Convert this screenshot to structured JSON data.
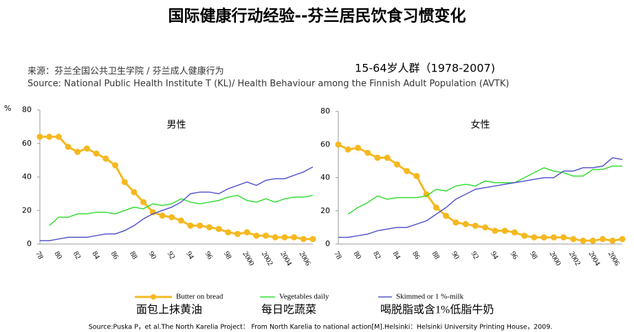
{
  "title": "国际健康行动经验--芬兰居民饮食习惯变化",
  "source_cn": "来源：芬兰全国公共卫生学院 / 芬兰成人健康行为",
  "source_en": "Source: National Public Health Institute T (KL)/ Health Behaviour among the Finnish Adult  Population (AVTK)",
  "group_label": "15-64岁人群（1978-2007)",
  "legend_cn": [
    "面包上抹黄油",
    "每日吃蔬菜",
    "喝脱脂或含1%低脂牛奶"
  ],
  "footnote": "Source:Puska P，et al.The North Karelia Project： From North Karelia to national action[M].Helsinki：Helsinki University Printing House，2009.",
  "chart_data": [
    {
      "type": "line",
      "title": "男性",
      "y_label": "%",
      "categories": [
        "78",
        null,
        "80",
        null,
        "82",
        null,
        "84",
        null,
        "86",
        null,
        "88",
        null,
        "90",
        null,
        "92",
        null,
        "94",
        null,
        "96",
        null,
        "98",
        null,
        "2000",
        null,
        "2002",
        null,
        "2004",
        null,
        "2006",
        null
      ],
      "ylim": [
        0,
        80
      ],
      "yticks": [
        0,
        20,
        40,
        60,
        80
      ],
      "series": [
        {
          "name": "Butter on bread",
          "color": "#f5b820",
          "values": [
            64,
            64,
            64,
            58,
            55,
            57,
            54,
            51,
            47,
            37,
            31,
            25,
            19,
            17,
            16,
            14,
            11,
            11,
            10,
            9,
            7,
            6,
            7,
            5,
            5,
            4,
            4,
            4,
            3,
            3
          ]
        },
        {
          "name": "Vegetables daily",
          "color": "#33dd33",
          "values": [
            null,
            11,
            16,
            16,
            18,
            18,
            19,
            19,
            18,
            20,
            22,
            21,
            24,
            23,
            24,
            27,
            25,
            24,
            25,
            26,
            28,
            29,
            26,
            25,
            27,
            25,
            27,
            28,
            28,
            29
          ]
        },
        {
          "name": "Skimmed or 1 %-milk",
          "color": "#5555cc",
          "values": [
            2,
            2,
            3,
            4,
            4,
            4,
            5,
            6,
            6,
            8,
            11,
            15,
            18,
            20,
            22,
            25,
            30,
            31,
            31,
            30,
            33,
            35,
            37,
            35,
            38,
            39,
            39,
            41,
            43,
            46
          ]
        }
      ]
    },
    {
      "type": "line",
      "title": "女性",
      "categories": [
        "78",
        null,
        "80",
        null,
        "82",
        null,
        "84",
        null,
        "86",
        null,
        "88",
        null,
        "90",
        null,
        "92",
        null,
        "94",
        null,
        "96",
        null,
        "98",
        null,
        "2000",
        null,
        "2002",
        null,
        "2004",
        null,
        "2006",
        null
      ],
      "ylim": [
        0,
        80
      ],
      "yticks": [
        0,
        20,
        40,
        60,
        80
      ],
      "series": [
        {
          "name": "Butter on bread",
          "color": "#f5b820",
          "values": [
            60,
            57,
            58,
            55,
            52,
            52,
            48,
            44,
            41,
            30,
            22,
            17,
            13,
            12,
            11,
            10,
            8,
            8,
            7,
            5,
            4,
            4,
            4,
            4,
            3,
            2,
            2,
            3,
            2,
            3
          ]
        },
        {
          "name": "Vegetables daily",
          "color": "#33dd33",
          "values": [
            null,
            18,
            22,
            25,
            29,
            27,
            28,
            28,
            28,
            29,
            33,
            32,
            35,
            36,
            35,
            38,
            37,
            37,
            37,
            40,
            43,
            46,
            44,
            43,
            41,
            41,
            45,
            45,
            47,
            47
          ]
        },
        {
          "name": "Skimmed or 1 %-milk",
          "color": "#5555cc",
          "values": [
            4,
            4,
            5,
            6,
            8,
            9,
            10,
            10,
            12,
            14,
            18,
            22,
            27,
            30,
            33,
            34,
            35,
            36,
            37,
            38,
            39,
            40,
            40,
            44,
            44,
            46,
            46,
            47,
            52,
            51
          ]
        }
      ]
    }
  ]
}
